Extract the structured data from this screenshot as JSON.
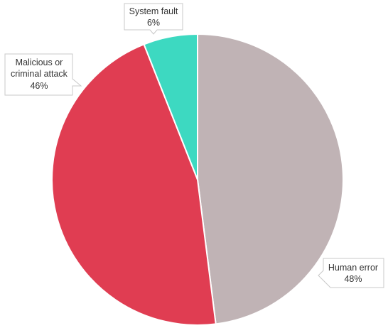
{
  "chart_data": {
    "type": "pie",
    "slices": [
      {
        "label": "Human error",
        "value": 48,
        "value_label": "48%",
        "color": "#c0b3b5"
      },
      {
        "label": "Malicious or criminal attack",
        "value": 46,
        "value_label": "46%",
        "color": "#e03d52"
      },
      {
        "label": "System fault",
        "value": 6,
        "value_label": "6%",
        "color": "#3dd9c1"
      }
    ],
    "start": "top",
    "direction": "clockwise"
  }
}
